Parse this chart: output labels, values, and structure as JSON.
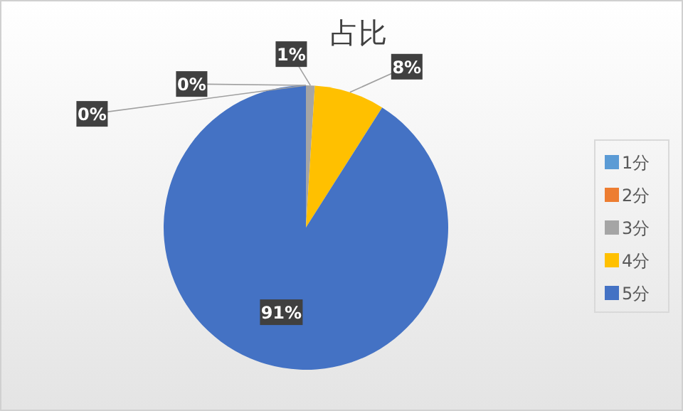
{
  "chart_data": {
    "type": "pie",
    "title": "占比",
    "categories": [
      "1分",
      "2分",
      "3分",
      "4分",
      "5分"
    ],
    "values": [
      0,
      0,
      1,
      8,
      91
    ],
    "colors": [
      "#5b9bd5",
      "#ed7d31",
      "#a5a5a5",
      "#ffc000",
      "#4472c4"
    ],
    "value_labels": [
      "0%",
      "0%",
      "1%",
      "8%",
      "91%"
    ],
    "legend": "right"
  }
}
